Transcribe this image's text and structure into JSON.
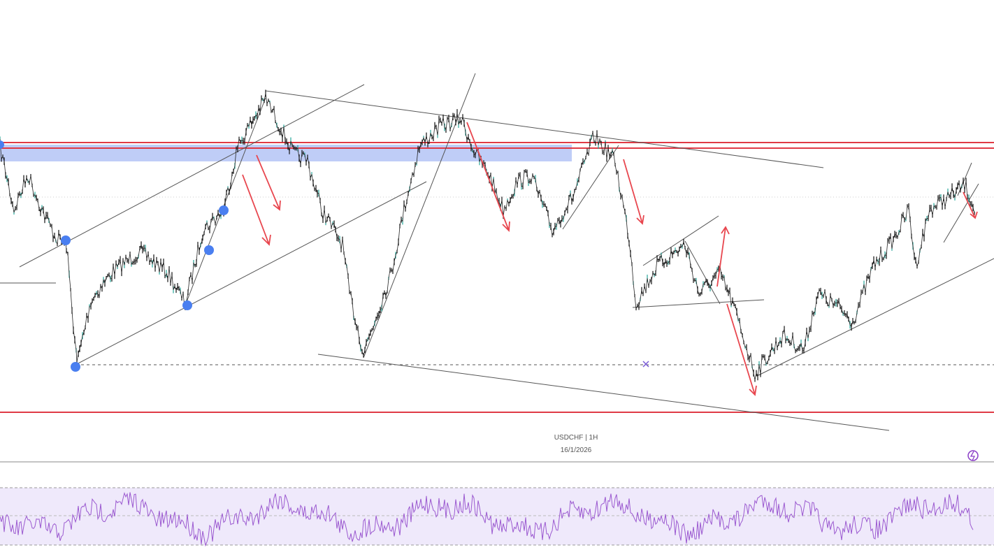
{
  "watermark": {
    "symbol_line": "USDCHF | 1H",
    "date": "16/1/2026"
  }
}
